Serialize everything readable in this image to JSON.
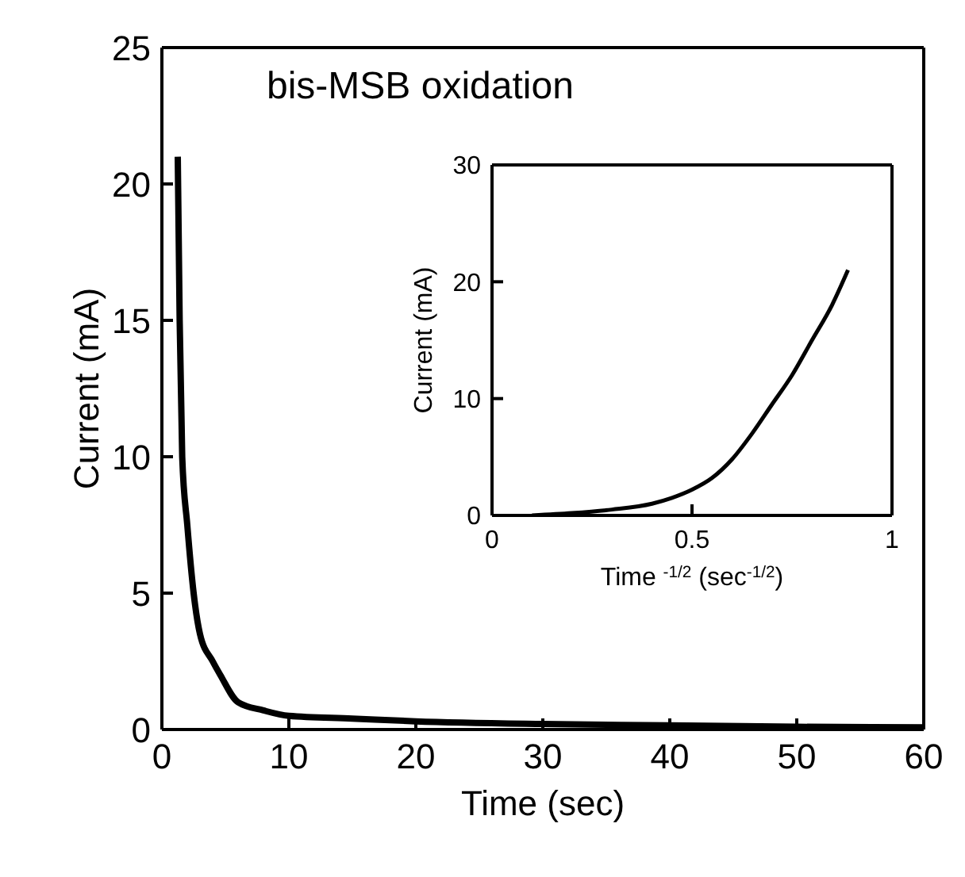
{
  "chart_data": [
    {
      "type": "line",
      "title": "bis-MSB oxidation",
      "xlabel": "Time (sec)",
      "ylabel": "Current (mA)",
      "xlim": [
        0,
        60
      ],
      "ylim": [
        0,
        25
      ],
      "xticks": [
        0,
        10,
        20,
        30,
        40,
        50,
        60
      ],
      "yticks": [
        0,
        5,
        10,
        15,
        20,
        25
      ],
      "series": [
        {
          "color": "#000000",
          "x": [
            1.25,
            1.4,
            1.6,
            2,
            2.5,
            3,
            4,
            4.6,
            6,
            8,
            10,
            15,
            20,
            30,
            40,
            50,
            60
          ],
          "values": [
            21,
            15,
            10,
            7.5,
            5,
            3.5,
            2.5,
            2,
            1,
            0.7,
            0.5,
            0.4,
            0.3,
            0.2,
            0.15,
            0.1,
            0.08
          ]
        }
      ]
    },
    {
      "type": "line",
      "xlabel": "Time $^{-1/2}$ (sec$^{-1/2}$)",
      "ylabel": "Current (mA)",
      "xlim": [
        0,
        1
      ],
      "ylim": [
        0,
        30
      ],
      "xticks": [
        0,
        0.5,
        1
      ],
      "yticks": [
        0,
        10,
        20,
        30
      ],
      "series": [
        {
          "color": "#000000",
          "x": [
            0.1,
            0.2,
            0.3,
            0.4,
            0.45,
            0.5,
            0.55,
            0.6,
            0.65,
            0.7,
            0.75,
            0.8,
            0.85,
            0.89
          ],
          "values": [
            0,
            0.2,
            0.5,
            1.0,
            1.5,
            2.2,
            3.2,
            4.8,
            7,
            9.5,
            12,
            15,
            18,
            21
          ]
        }
      ]
    }
  ]
}
